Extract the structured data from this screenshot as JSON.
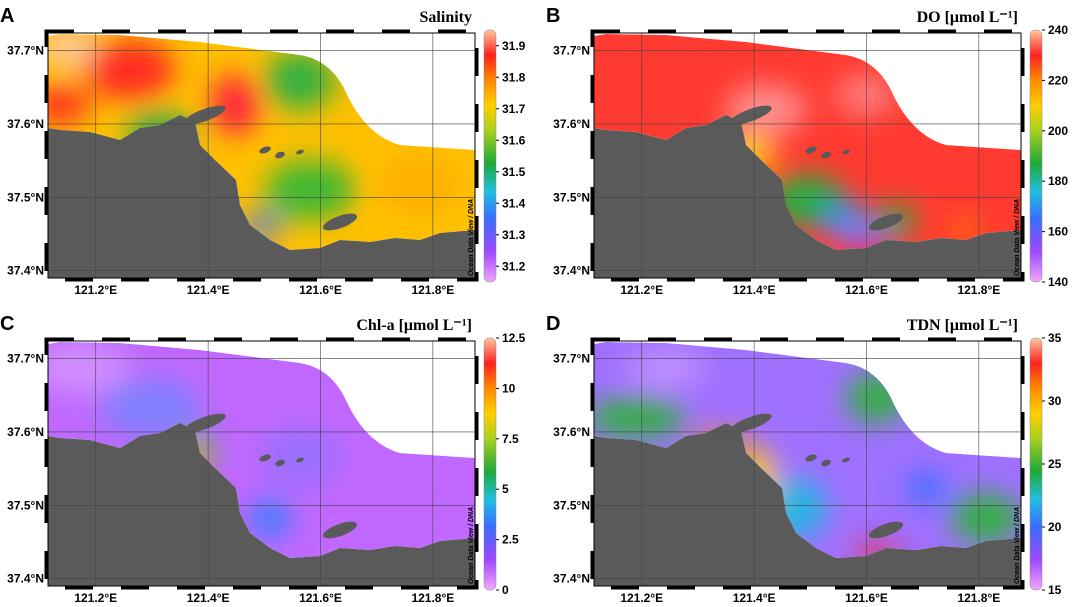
{
  "panels": [
    {
      "letter": "A",
      "title": "Salinity",
      "colorbar": {
        "clim": [
          31.15,
          31.95
        ],
        "ticks": [
          31.2,
          31.3,
          31.4,
          31.5,
          31.6,
          31.7,
          31.8,
          31.9
        ]
      },
      "map": {
        "xlim": [
          121.115,
          121.875
        ],
        "ylim": [
          37.39,
          37.724
        ],
        "xticks": [
          {
            "value": 121.2,
            "label": "121.2°E"
          },
          {
            "value": 121.4,
            "label": "121.4°E"
          },
          {
            "value": 121.6,
            "label": "121.6°E"
          },
          {
            "value": 121.8,
            "label": "121.8°E"
          }
        ],
        "yticks": [
          {
            "value": 37.4,
            "label": "37.4°N"
          },
          {
            "value": 37.5,
            "label": "37.5°N"
          },
          {
            "value": 37.6,
            "label": "37.6°N"
          },
          {
            "value": 37.7,
            "label": "37.7°N"
          }
        ]
      }
    },
    {
      "letter": "B",
      "title": "DO [μmol L⁻¹]",
      "colorbar": {
        "clim": [
          140,
          240
        ],
        "ticks": [
          140,
          160,
          180,
          200,
          220,
          240
        ]
      },
      "map": {
        "xlim": [
          121.115,
          121.875
        ],
        "ylim": [
          37.39,
          37.724
        ],
        "xticks": [
          {
            "value": 121.2,
            "label": "121.2°E"
          },
          {
            "value": 121.4,
            "label": "121.4°E"
          },
          {
            "value": 121.6,
            "label": "121.6°E"
          },
          {
            "value": 121.8,
            "label": "121.8°E"
          }
        ],
        "yticks": [
          {
            "value": 37.4,
            "label": "37.4°N"
          },
          {
            "value": 37.5,
            "label": "37.5°N"
          },
          {
            "value": 37.6,
            "label": "37.6°N"
          },
          {
            "value": 37.7,
            "label": "37.7°N"
          }
        ]
      }
    },
    {
      "letter": "C",
      "title": "Chl-a [μmol L⁻¹]",
      "colorbar": {
        "clim": [
          0,
          12.5
        ],
        "ticks": [
          0,
          2.5,
          5,
          7.5,
          10,
          12.5
        ]
      },
      "map": {
        "xlim": [
          121.115,
          121.875
        ],
        "ylim": [
          37.39,
          37.724
        ],
        "xticks": [
          {
            "value": 121.2,
            "label": "121.2°E"
          },
          {
            "value": 121.4,
            "label": "121.4°E"
          },
          {
            "value": 121.6,
            "label": "121.6°E"
          },
          {
            "value": 121.8,
            "label": "121.8°E"
          }
        ],
        "yticks": [
          {
            "value": 37.4,
            "label": "37.4°N"
          },
          {
            "value": 37.5,
            "label": "37.5°N"
          },
          {
            "value": 37.6,
            "label": "37.6°N"
          },
          {
            "value": 37.7,
            "label": "37.7°N"
          }
        ]
      }
    },
    {
      "letter": "D",
      "title": "TDN [μmol L⁻¹]",
      "colorbar": {
        "clim": [
          15,
          35
        ],
        "ticks": [
          15,
          20,
          25,
          30,
          35
        ]
      },
      "map": {
        "xlim": [
          121.115,
          121.875
        ],
        "ylim": [
          37.39,
          37.724
        ],
        "xticks": [
          {
            "value": 121.2,
            "label": "121.2°E"
          },
          {
            "value": 121.4,
            "label": "121.4°E"
          },
          {
            "value": 121.6,
            "label": "121.6°E"
          },
          {
            "value": 121.8,
            "label": "121.8°E"
          }
        ],
        "yticks": [
          {
            "value": 37.4,
            "label": "37.4°N"
          },
          {
            "value": 37.5,
            "label": "37.5°N"
          },
          {
            "value": 37.6,
            "label": "37.6°N"
          },
          {
            "value": 37.7,
            "label": "37.7°N"
          }
        ]
      }
    }
  ],
  "watermark": "Ocean Data View / DNA"
}
